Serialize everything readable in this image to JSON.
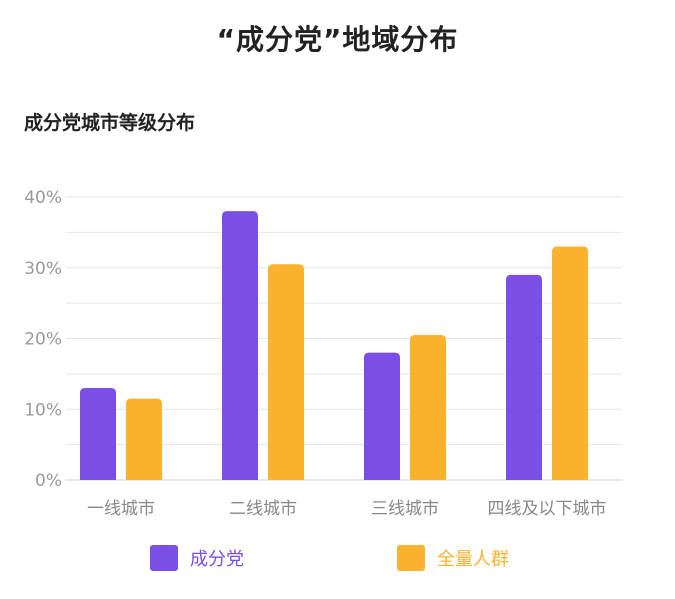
{
  "colors": {
    "purple": "#7B4FE6",
    "orange": "#FBB22F",
    "grid": "#e6e6e6",
    "tick": "#9a9a9a"
  },
  "page": {
    "title": "“成分党”地域分布",
    "subtitle": "成分党城市等级分布"
  },
  "legend": {
    "items": [
      {
        "label": "成分党",
        "color": "#7B4FE6"
      },
      {
        "label": "全量人群",
        "color": "#FBB22F"
      }
    ]
  },
  "chart_data": {
    "type": "bar",
    "title": "成分党城市等级分布",
    "categories": [
      "一线城市",
      "二线城市",
      "三线城市",
      "四线及以下城市"
    ],
    "series": [
      {
        "name": "成分党",
        "values": [
          13,
          38,
          18,
          29
        ]
      },
      {
        "name": "全量人群",
        "values": [
          11.5,
          30.5,
          20.5,
          33
        ]
      }
    ],
    "ylim": [
      0,
      40
    ],
    "yticks": [
      "0%",
      "10%",
      "20%",
      "30%",
      "40%"
    ],
    "ytick_values": [
      0,
      10,
      20,
      30,
      40
    ],
    "grid": true,
    "legend_position": "bottom"
  }
}
